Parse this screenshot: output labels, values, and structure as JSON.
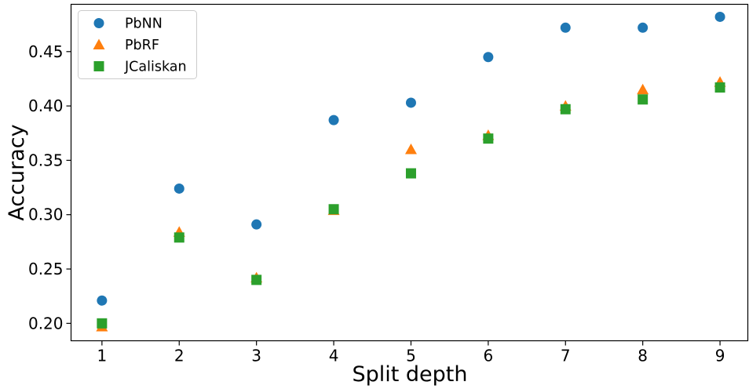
{
  "chart_data": {
    "type": "scatter",
    "xlabel": "Split depth",
    "ylabel": "Accuracy",
    "xlim": [
      0.6,
      9.36
    ],
    "ylim": [
      0.184,
      0.4935
    ],
    "x_ticks": [
      1,
      2,
      3,
      4,
      5,
      6,
      7,
      8,
      9
    ],
    "x_tick_labels": [
      "1",
      "2",
      "3",
      "4",
      "5",
      "6",
      "7",
      "8",
      "9"
    ],
    "y_ticks": [
      0.2,
      0.25,
      0.3,
      0.35,
      0.4,
      0.45
    ],
    "y_tick_labels": [
      "0.20",
      "0.25",
      "0.30",
      "0.35",
      "0.40",
      "0.45"
    ],
    "grid": false,
    "legend_position": "top-left",
    "series": [
      {
        "name": "PbNN",
        "marker": "circle",
        "color": "#1f77b4",
        "x": [
          1,
          2,
          3,
          4,
          5,
          6,
          7,
          8,
          9
        ],
        "y": [
          0.221,
          0.324,
          0.291,
          0.387,
          0.403,
          0.445,
          0.472,
          0.472,
          0.482
        ]
      },
      {
        "name": "PbRF",
        "marker": "triangle",
        "color": "#ff7f0e",
        "x": [
          1,
          2,
          3,
          4,
          5,
          6,
          7,
          8,
          9
        ],
        "y": [
          0.197,
          0.284,
          0.242,
          0.304,
          0.36,
          0.373,
          0.4,
          0.415,
          0.422
        ]
      },
      {
        "name": "JCaliskan",
        "marker": "square",
        "color": "#2ca02c",
        "x": [
          1,
          2,
          3,
          4,
          5,
          6,
          7,
          8,
          9
        ],
        "y": [
          0.2,
          0.279,
          0.24,
          0.305,
          0.338,
          0.37,
          0.397,
          0.406,
          0.417
        ]
      }
    ]
  }
}
